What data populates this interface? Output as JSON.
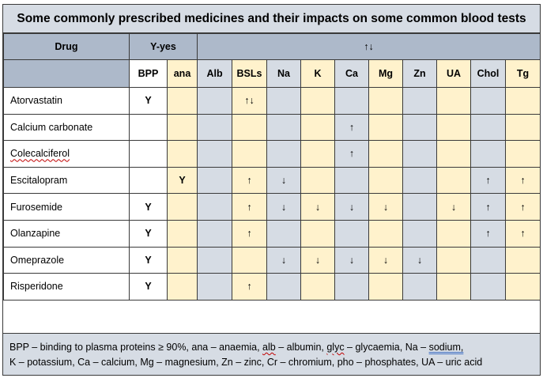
{
  "title": "Some commonly prescribed medicines and their impacts on some common blood tests",
  "header_row1": {
    "drug": "Drug",
    "yes_key": "Y-yes",
    "arrows": "↑↓"
  },
  "columns": [
    "BPP",
    "ana",
    "Alb",
    "BSLs",
    "Na",
    "K",
    "Ca",
    "Mg",
    "Zn",
    "UA",
    "Chol",
    "Tg"
  ],
  "rows": [
    {
      "drug": "Atorvastatin",
      "cells": [
        "Y",
        "",
        "",
        "↑↓",
        "",
        "",
        "",
        "",
        "",
        "",
        "",
        ""
      ]
    },
    {
      "drug": "Calcium carbonate",
      "cells": [
        "",
        "",
        "",
        "",
        "",
        "",
        "↑",
        "",
        "",
        "",
        "",
        ""
      ]
    },
    {
      "drug": "Colecalciferol",
      "cells": [
        "",
        "",
        "",
        "",
        "",
        "",
        "↑",
        "",
        "",
        "",
        "",
        ""
      ]
    },
    {
      "drug": "Escitalopram",
      "cells": [
        "",
        "Y",
        "",
        "↑",
        "↓",
        "",
        "",
        "",
        "",
        "",
        "↑",
        "↑"
      ]
    },
    {
      "drug": "Furosemide",
      "cells": [
        "Y",
        "",
        "",
        "↑",
        "↓",
        "↓",
        "↓",
        "↓",
        "",
        "↓",
        "↑",
        "↑"
      ]
    },
    {
      "drug": "Olanzapine",
      "cells": [
        "Y",
        "",
        "",
        "↑",
        "",
        "",
        "",
        "",
        "",
        "",
        "↑",
        "↑"
      ]
    },
    {
      "drug": "Omeprazole",
      "cells": [
        "Y",
        "",
        "",
        "",
        "↓",
        "↓",
        "↓",
        "↓",
        "↓",
        "",
        "",
        ""
      ]
    },
    {
      "drug": "Risperidone",
      "cells": [
        "Y",
        "",
        "",
        "↑",
        "",
        "",
        "",
        "",
        "",
        "",
        "",
        ""
      ]
    }
  ],
  "footer": {
    "line1_a": "BPP – binding to plasma proteins ≥ 90%, ana – anaemia, ",
    "line1_alb": "alb",
    "line1_b": " – albumin, ",
    "line1_glyc": "glyc",
    "line1_c": " – glycaemia, Na – ",
    "line1_sodium": "sodium,",
    "line2": "K – potassium, Ca – calcium, Mg – magnesium, Zn – zinc, Cr – chromium, pho – phosphates, UA – uric acid"
  }
}
